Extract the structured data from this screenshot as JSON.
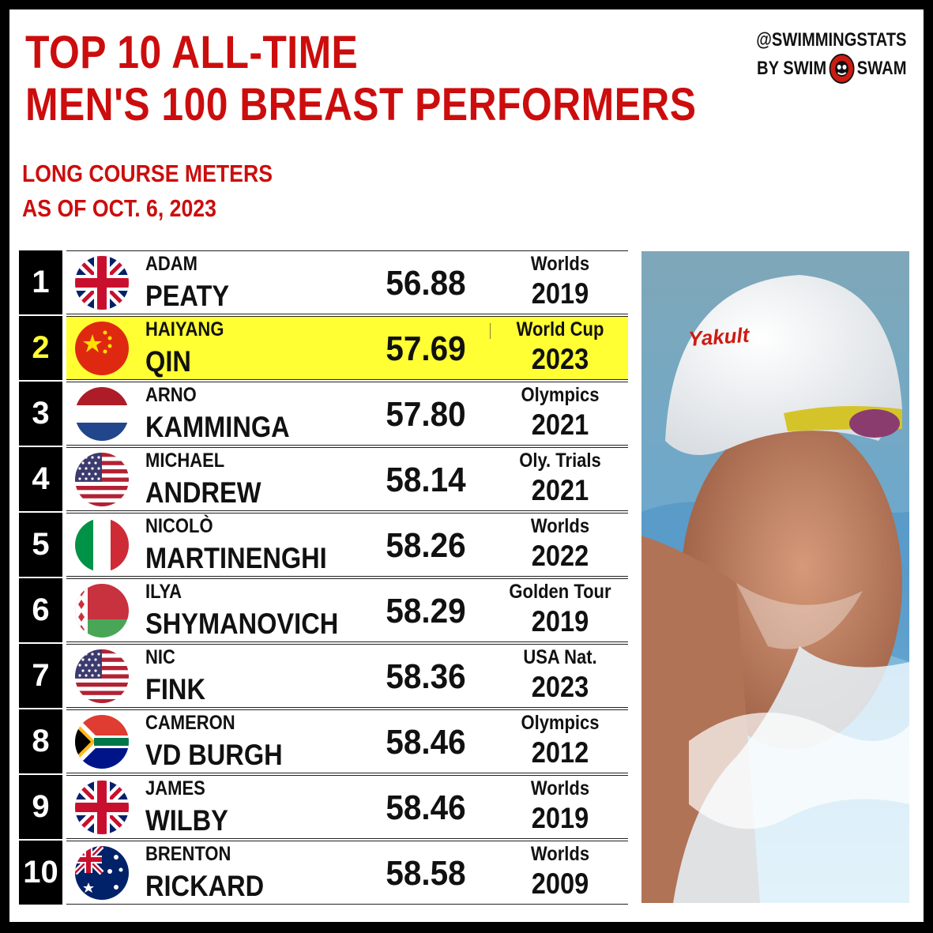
{
  "title": {
    "line1": "TOP 10 ALL-TIME",
    "line2": "MEN'S 100 BREAST PERFORMERS"
  },
  "subtitle": {
    "line1": "LONG COURSE METERS",
    "line2": "AS OF OCT. 6, 2023"
  },
  "brand": {
    "handle": "@SWIMMINGSTATS",
    "by": "BY SWIM",
    "swam": "SWAM"
  },
  "photo": {
    "cap_text": "Yakult"
  },
  "colors": {
    "title_red": "#cc0d0d",
    "highlight_yellow": "#ffff33"
  },
  "rows": [
    {
      "rank": "1",
      "first": "ADAM",
      "last": "PEATY",
      "time": "56.88",
      "meet": "Worlds",
      "year": "2019",
      "flag": "gbr-flag-icon"
    },
    {
      "rank": "2",
      "first": "HAIYANG",
      "last": "QIN",
      "time": "57.69",
      "meet": "World Cup",
      "year": "2023",
      "flag": "chn-flag-icon",
      "highlight": true
    },
    {
      "rank": "3",
      "first": "ARNO",
      "last": "KAMMINGA",
      "time": "57.80",
      "meet": "Olympics",
      "year": "2021",
      "flag": "ned-flag-icon"
    },
    {
      "rank": "4",
      "first": "MICHAEL",
      "last": "ANDREW",
      "time": "58.14",
      "meet": "Oly. Trials",
      "year": "2021",
      "flag": "usa-flag-icon"
    },
    {
      "rank": "5",
      "first": "NICOLÒ",
      "last": "MARTINENGHI",
      "time": "58.26",
      "meet": "Worlds",
      "year": "2022",
      "flag": "ita-flag-icon"
    },
    {
      "rank": "6",
      "first": "ILYA",
      "last": "SHYMANOVICH",
      "time": "58.29",
      "meet": "Golden Tour",
      "year": "2019",
      "flag": "blr-flag-icon"
    },
    {
      "rank": "7",
      "first": "NIC",
      "last": "FINK",
      "time": "58.36",
      "meet": "USA Nat.",
      "year": "2023",
      "flag": "usa-flag-icon"
    },
    {
      "rank": "8",
      "first": "CAMERON",
      "last": "VD BURGH",
      "time": "58.46",
      "meet": "Olympics",
      "year": "2012",
      "flag": "rsa-flag-icon"
    },
    {
      "rank": "9",
      "first": "JAMES",
      "last": "WILBY",
      "time": "58.46",
      "meet": "Worlds",
      "year": "2019",
      "flag": "gbr-flag-icon"
    },
    {
      "rank": "10",
      "first": "BRENTON",
      "last": "RICKARD",
      "time": "58.58",
      "meet": "Worlds",
      "year": "2009",
      "flag": "aus-flag-icon"
    }
  ]
}
